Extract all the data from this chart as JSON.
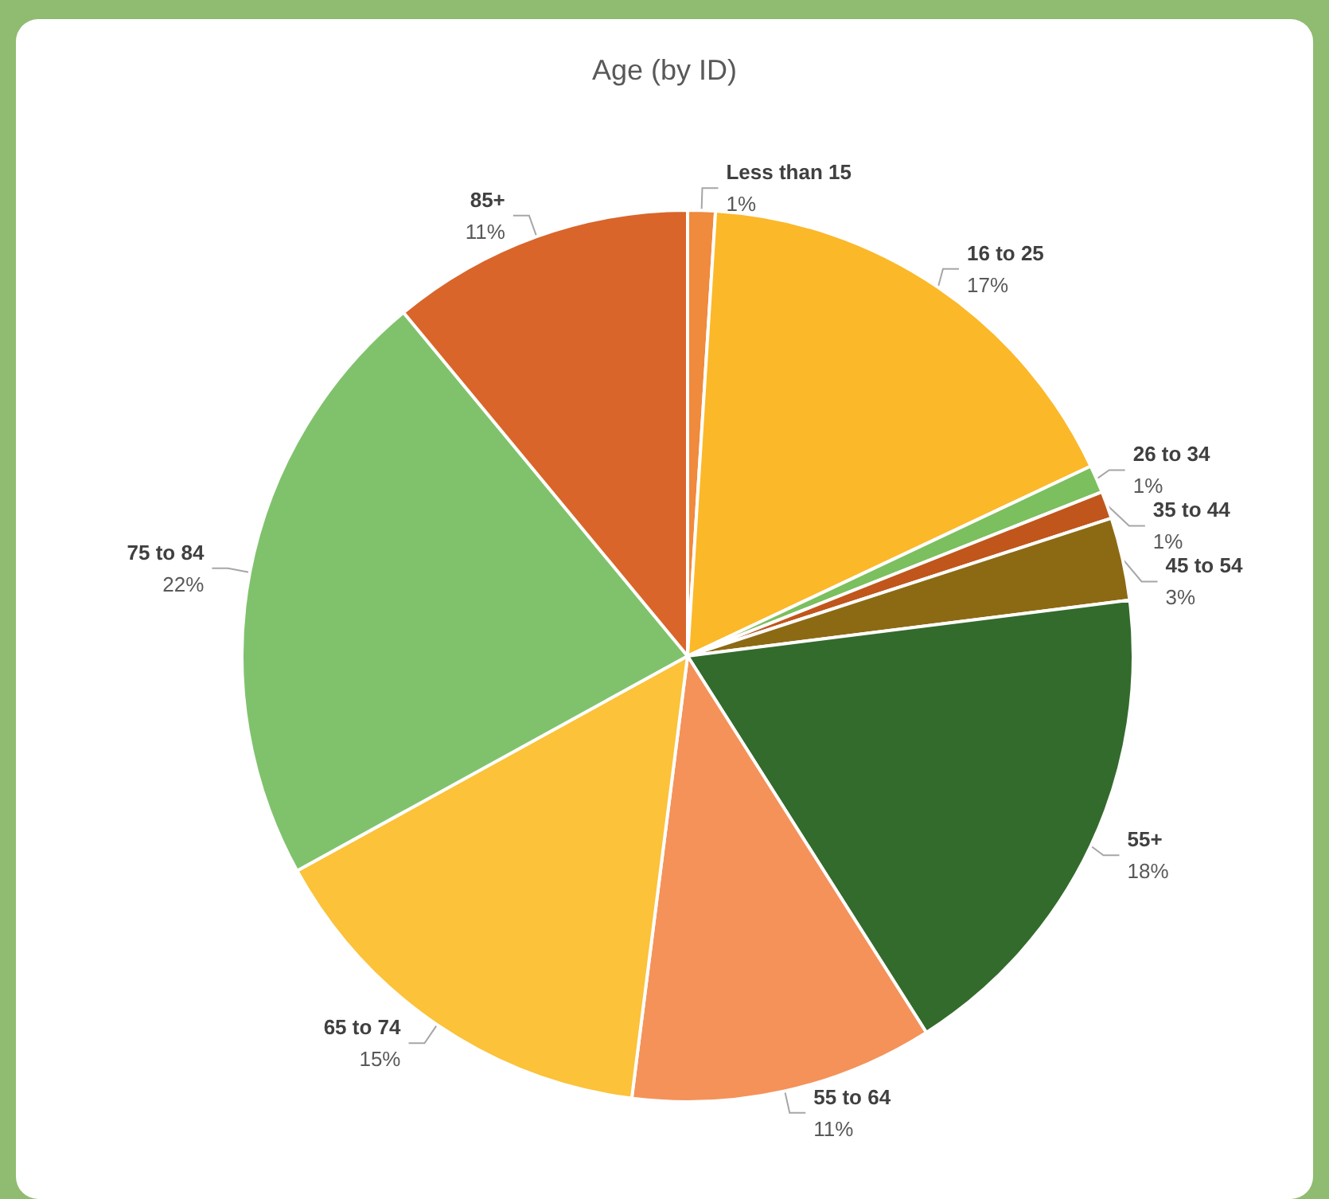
{
  "chart_data": {
    "type": "pie",
    "title": "Age (by ID)",
    "categories": [
      "Less than 15",
      "16 to 25",
      "26 to 34",
      "35 to 44",
      "45 to 54",
      "55+",
      "55 to 64",
      "65 to 74",
      "75 to 84",
      "85+"
    ],
    "values": [
      1,
      17,
      1,
      1,
      3,
      18,
      11,
      15,
      22,
      11
    ],
    "value_labels": [
      "1%",
      "17%",
      "1%",
      "1%",
      "3%",
      "18%",
      "11%",
      "15%",
      "22%",
      "11%"
    ],
    "colors": [
      "#f08a3c",
      "#fbb829",
      "#7cbf5e",
      "#c0561b",
      "#8c6a14",
      "#336b2c",
      "#f4925a",
      "#fbc23a",
      "#80c26c",
      "#d9652a"
    ],
    "legend": false
  }
}
